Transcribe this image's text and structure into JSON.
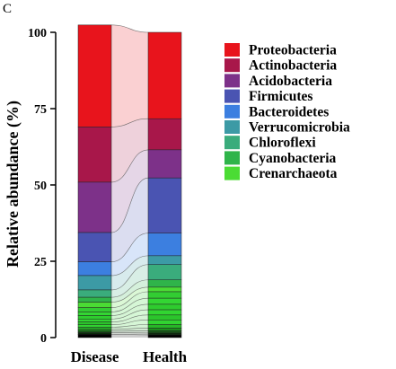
{
  "chart_data": {
    "type": "stacked-bar",
    "panel_label": "C",
    "ylabel": "Relative abundance (%)",
    "ylim": [
      0,
      100
    ],
    "yticks": [
      0,
      25,
      50,
      75,
      100
    ],
    "categories": [
      "Disease",
      "Health"
    ],
    "legend_position": "right",
    "series": [
      {
        "name": "Proteobacteria",
        "color": "#e8141c",
        "values": [
          33.4,
          28.3
        ]
      },
      {
        "name": "Actinobacteria",
        "color": "#a8174a",
        "values": [
          18.1,
          10.2
        ]
      },
      {
        "name": "Acidobacteria",
        "color": "#7d3189",
        "values": [
          16.5,
          9.2
        ]
      },
      {
        "name": "Firmicutes",
        "color": "#4a54b2",
        "values": [
          9.6,
          18.1
        ]
      },
      {
        "name": "Bacteroidetes",
        "color": "#3c7fe0",
        "values": [
          4.5,
          7.4
        ]
      },
      {
        "name": "Verrucomicrobia",
        "color": "#3c9aa5",
        "values": [
          4.7,
          2.9
        ]
      },
      {
        "name": "Chloroflexi",
        "color": "#3aac7c",
        "values": [
          2.4,
          5.0
        ]
      },
      {
        "name": "Cyanobacteria",
        "color": "#2fb44a",
        "values": [
          1.6,
          2.4
        ]
      },
      {
        "name": "Crenarchaeota",
        "color": "#4bdc34",
        "values": [
          1.8,
          1.5
        ]
      },
      {
        "name": "",
        "color": "#32cd32",
        "values": [
          1.4,
          2.1
        ]
      },
      {
        "name": "",
        "color": "#33d633",
        "values": [
          1.2,
          2.0
        ]
      },
      {
        "name": "",
        "color": "#2ecc2e",
        "values": [
          1.1,
          1.8
        ]
      },
      {
        "name": "",
        "color": "#31d531",
        "values": [
          1.0,
          1.7
        ]
      },
      {
        "name": "",
        "color": "#2bc52b",
        "values": [
          0.9,
          1.6
        ]
      },
      {
        "name": "",
        "color": "#31d431",
        "values": [
          0.8,
          1.5
        ]
      },
      {
        "name": "",
        "color": "#27b827",
        "values": [
          0.7,
          1.2
        ]
      },
      {
        "name": "",
        "color": "#1d8f1d",
        "values": [
          0.6,
          0.9
        ]
      },
      {
        "name": "",
        "color": "#145a14",
        "values": [
          0.5,
          0.7
        ]
      },
      {
        "name": "",
        "color": "#0a2a0a",
        "values": [
          0.5,
          0.6
        ]
      },
      {
        "name": "",
        "color": "#000000",
        "values": [
          1.1,
          0.9
        ]
      }
    ]
  }
}
